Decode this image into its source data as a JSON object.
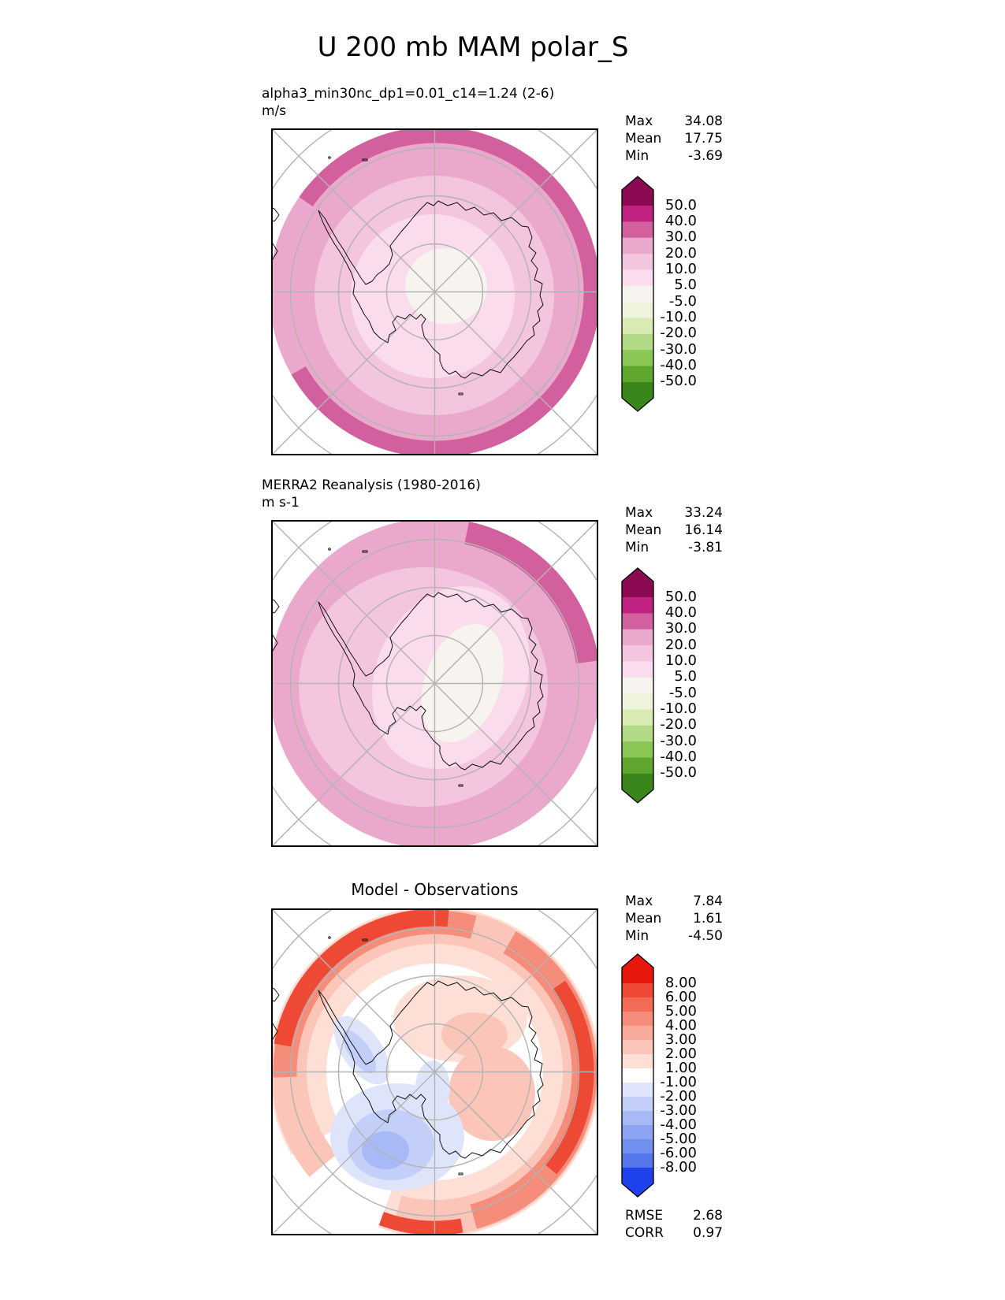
{
  "title": "U 200 mb MAM polar_S",
  "panels": [
    {
      "label": "alpha3_min30nc_dp1=0.01_c14=1.24 (2-6)",
      "units": "m/s",
      "stats": [
        {
          "name": "Max",
          "value": "34.08"
        },
        {
          "name": "Mean",
          "value": "17.75"
        },
        {
          "name": "Min",
          "value": "-3.69"
        }
      ],
      "colorbar": {
        "ticks": [
          "50.0",
          "40.0",
          "30.0",
          "20.0",
          "10.0",
          "5.0",
          "-5.0",
          "-10.0",
          "-20.0",
          "-30.0",
          "-40.0",
          "-50.0"
        ],
        "colors": [
          "#8c0a52",
          "#c02282",
          "#d2609e",
          "#e9a8cc",
          "#f3c5de",
          "#fbdcec",
          "#f7f3ef",
          "#eef3dd",
          "#d9eab3",
          "#b2d985",
          "#8ac757",
          "#5fa62f",
          "#39871c"
        ]
      }
    },
    {
      "label": "MERRA2 Reanalysis (1980-2016)",
      "units": "m s-1",
      "stats": [
        {
          "name": "Max",
          "value": "33.24"
        },
        {
          "name": "Mean",
          "value": "16.14"
        },
        {
          "name": "Min",
          "value": "-3.81"
        }
      ],
      "colorbar": {
        "ticks": [
          "50.0",
          "40.0",
          "30.0",
          "20.0",
          "10.0",
          "5.0",
          "-5.0",
          "-10.0",
          "-20.0",
          "-30.0",
          "-40.0",
          "-50.0"
        ],
        "colors": [
          "#8c0a52",
          "#c02282",
          "#d2609e",
          "#e9a8cc",
          "#f3c5de",
          "#fbdcec",
          "#f7f3ef",
          "#eef3dd",
          "#d9eab3",
          "#b2d985",
          "#8ac757",
          "#5fa62f",
          "#39871c"
        ]
      }
    },
    {
      "title": "Model - Observations",
      "stats": [
        {
          "name": "Max",
          "value": "7.84"
        },
        {
          "name": "Mean",
          "value": "1.61"
        },
        {
          "name": "Min",
          "value": "-4.50"
        }
      ],
      "colorbar": {
        "ticks": [
          "8.00",
          "6.00",
          "5.00",
          "4.00",
          "3.00",
          "2.00",
          "1.00",
          "-1.00",
          "-2.00",
          "-3.00",
          "-4.00",
          "-5.00",
          "-6.00",
          "-8.00"
        ],
        "colors": [
          "#e8170e",
          "#ee4934",
          "#f26b57",
          "#f58d7a",
          "#f9ab9b",
          "#fbc6b9",
          "#fddfd6",
          "#ffffff",
          "#dee5fb",
          "#c3cff9",
          "#a8baf6",
          "#8ca4f2",
          "#7190ee",
          "#5577eb",
          "#1e40ed"
        ]
      },
      "extra_stats": [
        {
          "name": "RMSE",
          "value": "2.68"
        },
        {
          "name": "CORR",
          "value": "0.97"
        }
      ]
    }
  ],
  "chart_data": [
    {
      "type": "heatmap",
      "title": "alpha3_min30nc_dp1=0.01_c14=1.24 (2-6)",
      "ylabel": "m/s",
      "projection": "south polar stereographic map, Antarctica centered",
      "stats": {
        "max": 34.08,
        "mean": 17.75,
        "min": -3.69
      },
      "contour_levels": [
        -50,
        -40,
        -30,
        -20,
        -10,
        -5,
        5,
        10,
        20,
        30,
        40,
        50
      ],
      "legend_position": "right vertical colorbar, pink positive / green negative",
      "description": "Concentric zonal rings: near-0 white at pole, increasing to 20-30 m/s at mid-latitude edge, 30-40 m/s band along outer rim"
    },
    {
      "type": "heatmap",
      "title": "MERRA2 Reanalysis (1980-2016)",
      "ylabel": "m s-1",
      "projection": "south polar stereographic map, Antarctica centered",
      "stats": {
        "max": 33.24,
        "mean": 16.14,
        "min": -3.81
      },
      "contour_levels": [
        -50,
        -40,
        -30,
        -20,
        -10,
        -5,
        5,
        10,
        20,
        30,
        40,
        50
      ],
      "legend_position": "right vertical colorbar, pink positive / green negative",
      "description": "Same ring structure with near-0 white core shifted east of pole and 30-40 m/s band in northeast rim"
    },
    {
      "type": "heatmap",
      "title": "Model - Observations",
      "projection": "south polar stereographic map, Antarctica centered",
      "stats": {
        "max": 7.84,
        "mean": 1.61,
        "min": -4.5
      },
      "contour_levels": [
        -8,
        -6,
        -5,
        -4,
        -3,
        -2,
        -1,
        1,
        2,
        3,
        4,
        5,
        6,
        8
      ],
      "rmse": 2.68,
      "corr": 0.97,
      "legend_position": "right vertical colorbar, red positive / blue negative",
      "description": "Red positive bias ring at outer rim (strongest northwest and east), blue negative bias blob over West Antarctica / Ross sector"
    }
  ]
}
